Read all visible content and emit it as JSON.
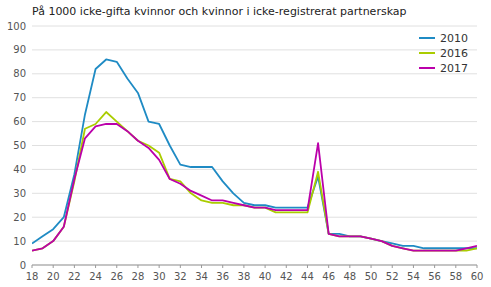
{
  "chart_data": {
    "type": "line",
    "title": "På 1000 icke-gifta kvinnor och kvinnor i icke-registrerat partnerskap",
    "x": [
      18,
      19,
      20,
      21,
      22,
      23,
      24,
      25,
      26,
      27,
      28,
      29,
      30,
      31,
      32,
      33,
      34,
      35,
      36,
      37,
      38,
      39,
      40,
      41,
      42,
      43,
      44,
      45,
      46,
      47,
      48,
      49,
      50,
      51,
      52,
      53,
      54,
      55,
      56,
      57,
      58,
      59,
      60
    ],
    "series": [
      {
        "name": "2010",
        "color": "#1f8bc4",
        "values": [
          9,
          12,
          15,
          20,
          38,
          63,
          82,
          86,
          85,
          78,
          72,
          60,
          59,
          50,
          42,
          41,
          41,
          41,
          35,
          30,
          26,
          25,
          25,
          24,
          24,
          24,
          24,
          37,
          13,
          13,
          12,
          12,
          11,
          10,
          9,
          8,
          8,
          7,
          7,
          7,
          7,
          7,
          7
        ]
      },
      {
        "name": "2016",
        "color": "#aacc00",
        "values": [
          6,
          7,
          10,
          16,
          35,
          57,
          59,
          64,
          60,
          56,
          52,
          50,
          47,
          36,
          35,
          30,
          27,
          26,
          26,
          25,
          25,
          24,
          24,
          22,
          22,
          22,
          22,
          39,
          13,
          12,
          12,
          12,
          11,
          10,
          8,
          7,
          6,
          6,
          6,
          6,
          6,
          6,
          7
        ]
      },
      {
        "name": "2017",
        "color": "#bb00aa",
        "values": [
          6,
          7,
          10,
          16,
          36,
          53,
          58,
          59,
          59,
          56,
          52,
          49,
          44,
          36,
          34,
          31,
          29,
          27,
          27,
          26,
          25,
          24,
          24,
          23,
          23,
          23,
          23,
          51,
          13,
          12,
          12,
          12,
          11,
          10,
          8,
          7,
          6,
          6,
          6,
          6,
          6,
          7,
          8
        ]
      }
    ],
    "xlim": [
      18,
      60
    ],
    "ylim": [
      0,
      100
    ],
    "xticks": [
      18,
      20,
      22,
      24,
      26,
      28,
      30,
      32,
      34,
      36,
      38,
      40,
      42,
      44,
      46,
      48,
      50,
      52,
      54,
      56,
      58,
      60
    ],
    "yticks": [
      0,
      10,
      20,
      30,
      40,
      50,
      60,
      70,
      80,
      90,
      100
    ],
    "grid": true,
    "legend": "upper right"
  }
}
